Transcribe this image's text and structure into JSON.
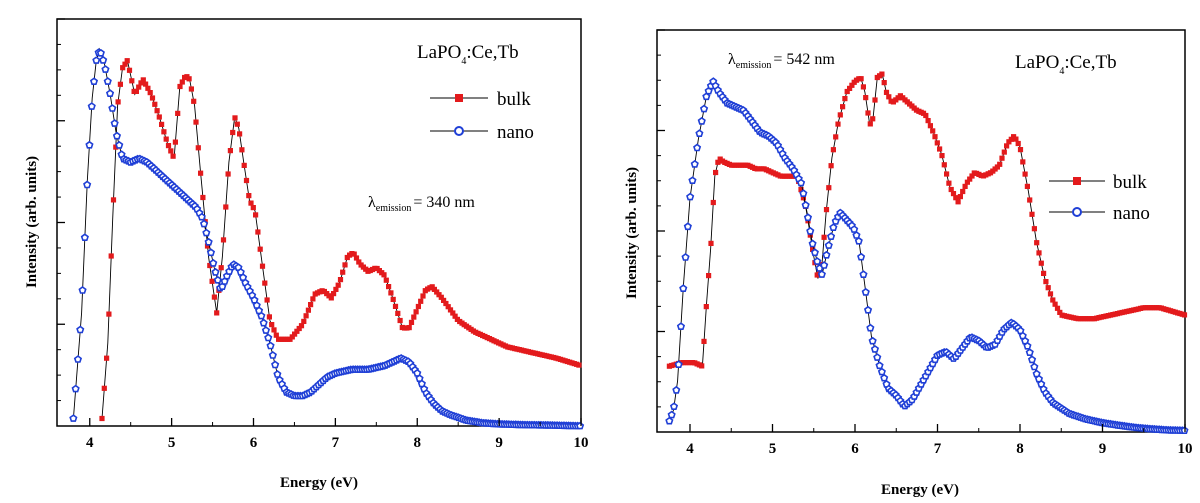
{
  "chart_data": [
    {
      "type": "scatter",
      "xlabel": "Energy (eV)",
      "ylabel": "Intensity (arb. units)",
      "xlim": [
        3.6,
        10
      ],
      "ylim": [
        0,
        1.08
      ],
      "x_ticks": [
        "4",
        "5",
        "6",
        "7",
        "8",
        "9",
        "10"
      ],
      "annotations": {
        "compound": {
          "base": "LaPO",
          "sub": "4",
          "rest": ":Ce,Tb"
        },
        "excitation": {
          "symbol": "λ",
          "sub": "emission",
          "text": "= 340 nm"
        }
      },
      "legend": {
        "placement": "top-right"
      },
      "series": [
        {
          "name": "bulk",
          "color": "#e31a1c",
          "marker": "square",
          "x": [
            4.15,
            4.22,
            4.28,
            4.34,
            4.4,
            4.46,
            4.55,
            4.65,
            4.75,
            4.85,
            4.95,
            5.03,
            5.1,
            5.17,
            5.22,
            5.28,
            5.35,
            5.45,
            5.55,
            5.62,
            5.7,
            5.77,
            5.82,
            5.88,
            5.95,
            6.02,
            6.1,
            6.2,
            6.3,
            6.45,
            6.6,
            6.75,
            6.85,
            6.95,
            7.05,
            7.15,
            7.22,
            7.3,
            7.4,
            7.5,
            7.6,
            7.7,
            7.82,
            7.9,
            8.0,
            8.1,
            8.18,
            8.3,
            8.5,
            8.7,
            8.9,
            9.1,
            9.3,
            9.5,
            9.7,
            9.85,
            10.0
          ],
          "y": [
            0.02,
            0.22,
            0.55,
            0.85,
            0.95,
            0.97,
            0.88,
            0.92,
            0.88,
            0.82,
            0.75,
            0.71,
            0.9,
            0.93,
            0.92,
            0.85,
            0.68,
            0.45,
            0.3,
            0.45,
            0.7,
            0.82,
            0.79,
            0.7,
            0.6,
            0.57,
            0.44,
            0.28,
            0.23,
            0.23,
            0.27,
            0.35,
            0.36,
            0.34,
            0.38,
            0.45,
            0.46,
            0.43,
            0.41,
            0.42,
            0.4,
            0.34,
            0.26,
            0.26,
            0.31,
            0.36,
            0.37,
            0.34,
            0.28,
            0.25,
            0.23,
            0.21,
            0.2,
            0.19,
            0.18,
            0.17,
            0.16
          ]
        },
        {
          "name": "nano",
          "color": "#1f3fd6",
          "marker": "pentagon",
          "x": [
            3.8,
            3.9,
            3.97,
            4.03,
            4.08,
            4.12,
            4.18,
            4.25,
            4.32,
            4.4,
            4.5,
            4.6,
            4.7,
            4.8,
            4.9,
            5.0,
            5.1,
            5.2,
            5.3,
            5.38,
            5.45,
            5.52,
            5.6,
            5.68,
            5.75,
            5.82,
            5.9,
            6.0,
            6.1,
            6.2,
            6.3,
            6.4,
            6.5,
            6.6,
            6.7,
            6.8,
            6.9,
            7.0,
            7.2,
            7.4,
            7.6,
            7.7,
            7.8,
            7.9,
            8.0,
            8.1,
            8.2,
            8.3,
            8.4,
            8.6,
            8.8,
            9.0,
            9.3,
            9.6,
            10.0
          ],
          "y": [
            0.02,
            0.3,
            0.65,
            0.87,
            0.97,
            1.0,
            0.96,
            0.88,
            0.78,
            0.71,
            0.7,
            0.71,
            0.7,
            0.68,
            0.66,
            0.64,
            0.62,
            0.6,
            0.58,
            0.55,
            0.49,
            0.42,
            0.36,
            0.4,
            0.43,
            0.42,
            0.38,
            0.34,
            0.29,
            0.22,
            0.13,
            0.09,
            0.08,
            0.08,
            0.09,
            0.11,
            0.13,
            0.14,
            0.15,
            0.15,
            0.16,
            0.17,
            0.18,
            0.17,
            0.14,
            0.09,
            0.06,
            0.04,
            0.03,
            0.015,
            0.008,
            0.005,
            0.003,
            0.002,
            0.0
          ]
        }
      ]
    },
    {
      "type": "scatter",
      "xlabel": "Energy (eV)",
      "ylabel": "Intensity (arb. units)",
      "xlim": [
        3.6,
        10
      ],
      "ylim": [
        0,
        1.1
      ],
      "x_ticks": [
        "4",
        "5",
        "6",
        "7",
        "8",
        "9",
        "10"
      ],
      "annotations": {
        "compound": {
          "base": "LaPO",
          "sub": "4",
          "rest": ":Ce,Tb"
        },
        "excitation": {
          "symbol": "λ",
          "sub": "emission",
          "text": "= 542 nm"
        }
      },
      "legend": {
        "placement": "right"
      },
      "series": [
        {
          "name": "bulk",
          "color": "#e31a1c",
          "marker": "square",
          "x": [
            3.75,
            3.9,
            4.05,
            4.15,
            4.2,
            4.25,
            4.3,
            4.35,
            4.4,
            4.5,
            4.6,
            4.7,
            4.8,
            4.9,
            5.0,
            5.1,
            5.2,
            5.3,
            5.4,
            5.5,
            5.55,
            5.6,
            5.65,
            5.72,
            5.8,
            5.9,
            6.0,
            6.07,
            6.12,
            6.18,
            6.22,
            6.27,
            6.33,
            6.38,
            6.45,
            6.55,
            6.65,
            6.75,
            6.85,
            6.95,
            7.05,
            7.15,
            7.25,
            7.35,
            7.45,
            7.55,
            7.65,
            7.75,
            7.85,
            7.93,
            8.0,
            8.1,
            8.2,
            8.3,
            8.4,
            8.5,
            8.7,
            8.9,
            9.1,
            9.3,
            9.5,
            9.7,
            9.85,
            10.0
          ],
          "y": [
            0.18,
            0.19,
            0.19,
            0.18,
            0.35,
            0.5,
            0.7,
            0.75,
            0.74,
            0.73,
            0.73,
            0.73,
            0.72,
            0.72,
            0.71,
            0.7,
            0.7,
            0.7,
            0.62,
            0.48,
            0.42,
            0.46,
            0.6,
            0.75,
            0.85,
            0.93,
            0.96,
            0.97,
            0.93,
            0.84,
            0.86,
            0.97,
            0.98,
            0.93,
            0.9,
            0.92,
            0.9,
            0.88,
            0.87,
            0.82,
            0.76,
            0.67,
            0.63,
            0.68,
            0.71,
            0.7,
            0.71,
            0.73,
            0.79,
            0.81,
            0.78,
            0.66,
            0.52,
            0.42,
            0.36,
            0.32,
            0.31,
            0.31,
            0.32,
            0.33,
            0.34,
            0.34,
            0.33,
            0.32
          ]
        },
        {
          "name": "nano",
          "color": "#1f3fd6",
          "marker": "pentagon",
          "x": [
            3.75,
            3.8,
            3.85,
            3.92,
            4.0,
            4.1,
            4.2,
            4.28,
            4.35,
            4.45,
            4.55,
            4.65,
            4.75,
            4.85,
            4.95,
            5.05,
            5.15,
            5.25,
            5.35,
            5.42,
            5.48,
            5.55,
            5.6,
            5.67,
            5.75,
            5.82,
            5.9,
            5.98,
            6.05,
            6.12,
            6.2,
            6.3,
            6.4,
            6.5,
            6.6,
            6.7,
            6.8,
            6.9,
            7.0,
            7.1,
            7.2,
            7.3,
            7.4,
            7.5,
            7.6,
            7.7,
            7.8,
            7.9,
            8.0,
            8.1,
            8.2,
            8.3,
            8.4,
            8.6,
            8.8,
            9.0,
            9.2,
            9.4,
            9.6,
            9.8,
            10.0
          ],
          "y": [
            0.03,
            0.06,
            0.14,
            0.4,
            0.64,
            0.8,
            0.92,
            0.96,
            0.93,
            0.9,
            0.89,
            0.88,
            0.85,
            0.82,
            0.81,
            0.79,
            0.75,
            0.72,
            0.68,
            0.6,
            0.52,
            0.46,
            0.43,
            0.5,
            0.57,
            0.6,
            0.58,
            0.56,
            0.52,
            0.4,
            0.26,
            0.18,
            0.12,
            0.1,
            0.07,
            0.09,
            0.13,
            0.17,
            0.21,
            0.22,
            0.2,
            0.23,
            0.26,
            0.25,
            0.23,
            0.24,
            0.28,
            0.3,
            0.28,
            0.23,
            0.16,
            0.11,
            0.08,
            0.05,
            0.035,
            0.025,
            0.018,
            0.012,
            0.008,
            0.005,
            0.004
          ]
        }
      ]
    }
  ]
}
